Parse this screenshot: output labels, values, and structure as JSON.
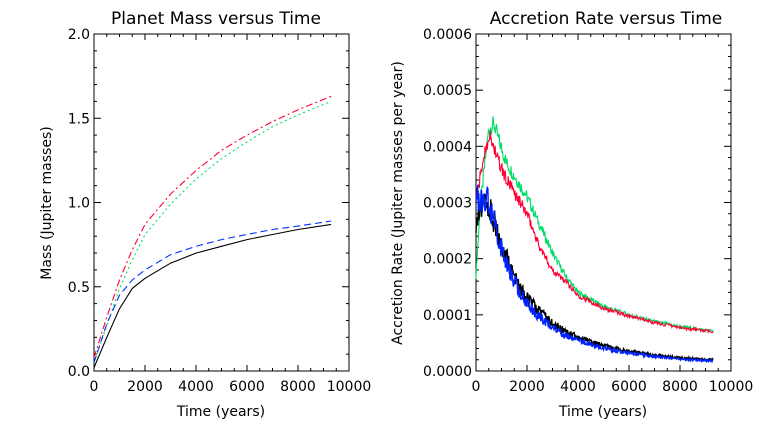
{
  "chart_data": [
    {
      "type": "line",
      "title": "Planet Mass versus Time",
      "xlabel": "Time (years)",
      "ylabel": "Mass (Jupiter masses)",
      "xlim": [
        0,
        10000
      ],
      "ylim": [
        0.0,
        2.0
      ],
      "xticks": [
        0,
        2000,
        4000,
        6000,
        8000,
        10000
      ],
      "xtick_labels": [
        "0",
        "2000",
        "4000",
        "6000",
        "8000",
        "10000"
      ],
      "yticks": [
        0.0,
        0.5,
        1.0,
        1.5,
        2.0
      ],
      "ytick_labels": [
        "0.0",
        "0.5",
        "1.0",
        "1.5",
        "2.0"
      ],
      "series": [
        {
          "name": "red dash-dot",
          "color": "#ff0033",
          "dash": "dashdot",
          "x": [
            0,
            500,
            1000,
            1500,
            2000,
            3000,
            4000,
            5000,
            6000,
            7000,
            8000,
            9300
          ],
          "y": [
            0.08,
            0.32,
            0.54,
            0.72,
            0.87,
            1.05,
            1.19,
            1.31,
            1.4,
            1.48,
            1.55,
            1.63
          ]
        },
        {
          "name": "green dotted",
          "color": "#00dd66",
          "dash": "dot",
          "x": [
            0,
            500,
            1000,
            1500,
            2000,
            3000,
            4000,
            5000,
            6000,
            7000,
            8000,
            9300
          ],
          "y": [
            0.05,
            0.27,
            0.49,
            0.66,
            0.81,
            0.99,
            1.14,
            1.26,
            1.36,
            1.45,
            1.52,
            1.6
          ]
        },
        {
          "name": "blue dashed",
          "color": "#0033ff",
          "dash": "dash",
          "x": [
            0,
            500,
            1000,
            1500,
            2000,
            3000,
            4000,
            5000,
            6000,
            7000,
            8000,
            9300
          ],
          "y": [
            0.05,
            0.28,
            0.45,
            0.54,
            0.6,
            0.69,
            0.74,
            0.78,
            0.81,
            0.84,
            0.86,
            0.89
          ]
        },
        {
          "name": "black solid",
          "color": "#000000",
          "dash": "solid",
          "x": [
            0,
            500,
            1000,
            1500,
            2000,
            3000,
            4000,
            5000,
            6000,
            7000,
            8000,
            9300
          ],
          "y": [
            0.02,
            0.2,
            0.37,
            0.49,
            0.55,
            0.64,
            0.7,
            0.74,
            0.78,
            0.81,
            0.84,
            0.87
          ]
        }
      ]
    },
    {
      "type": "line",
      "title": "Accretion Rate versus Time",
      "xlabel": "Time (years)",
      "ylabel": "Accretion Rate (Jupiter masses per year)",
      "xlim": [
        0,
        10000
      ],
      "ylim": [
        0.0,
        0.0006
      ],
      "xticks": [
        0,
        2000,
        4000,
        6000,
        8000,
        10000
      ],
      "xtick_labels": [
        "0",
        "2000",
        "4000",
        "6000",
        "8000",
        "10000"
      ],
      "yticks": [
        0.0,
        0.0001,
        0.0002,
        0.0003,
        0.0004,
        0.0005,
        0.0006
      ],
      "ytick_labels": [
        "0.0000",
        "0.0001",
        "0.0002",
        "0.0003",
        "0.0004",
        "0.0005",
        "0.0006"
      ],
      "series": [
        {
          "name": "green",
          "color": "#00dd66",
          "x": [
            0,
            150,
            300,
            500,
            700,
            900,
            1200,
            1600,
            2000,
            2500,
            3000,
            3500,
            4000,
            5000,
            6000,
            7000,
            8000,
            9300
          ],
          "y": [
            0.00017,
            0.00028,
            0.00035,
            0.00043,
            0.00044,
            0.00041,
            0.00037,
            0.00034,
            0.00031,
            0.00026,
            0.00021,
            0.00017,
            0.00014,
            0.000115,
            0.0001,
            8.8e-05,
            7.9e-05,
            7.1e-05
          ]
        },
        {
          "name": "red",
          "color": "#ff0033",
          "x": [
            0,
            150,
            300,
            500,
            700,
            900,
            1200,
            1600,
            2000,
            2500,
            3000,
            3500,
            4000,
            5000,
            6000,
            7000,
            8000,
            9300
          ],
          "y": [
            0.00031,
            0.00034,
            0.00038,
            0.00042,
            0.0004,
            0.00037,
            0.00034,
            0.00031,
            0.00028,
            0.00022,
            0.00018,
            0.00016,
            0.000135,
            0.000112,
            9.8e-05,
            8.6e-05,
            7.7e-05,
            7e-05
          ]
        },
        {
          "name": "black",
          "color": "#000000",
          "x": [
            0,
            150,
            300,
            500,
            700,
            900,
            1200,
            1600,
            2000,
            2500,
            3000,
            3500,
            4000,
            5000,
            6000,
            7000,
            8000,
            9300
          ],
          "y": [
            0.00027,
            0.00028,
            0.00029,
            0.00029,
            0.00027,
            0.00024,
            0.0002,
            0.00016,
            0.00013,
            0.000105,
            8.5e-05,
            7e-05,
            6e-05,
            4.5e-05,
            3.5e-05,
            2.8e-05,
            2.3e-05,
            2e-05
          ]
        },
        {
          "name": "blue",
          "color": "#0022ff",
          "x": [
            0,
            150,
            300,
            500,
            700,
            900,
            1200,
            1600,
            2000,
            2500,
            3000,
            3500,
            4000,
            5000,
            6000,
            7000,
            8000,
            9300
          ],
          "y": [
            0.00031,
            0.00031,
            0.0003,
            0.0003,
            0.00027,
            0.00023,
            0.00019,
            0.00015,
            0.00012,
            9.5e-05,
            7.8e-05,
            6.3e-05,
            5.5e-05,
            4e-05,
            3.2e-05,
            2.6e-05,
            2.1e-05,
            1.8e-05
          ]
        }
      ]
    }
  ]
}
